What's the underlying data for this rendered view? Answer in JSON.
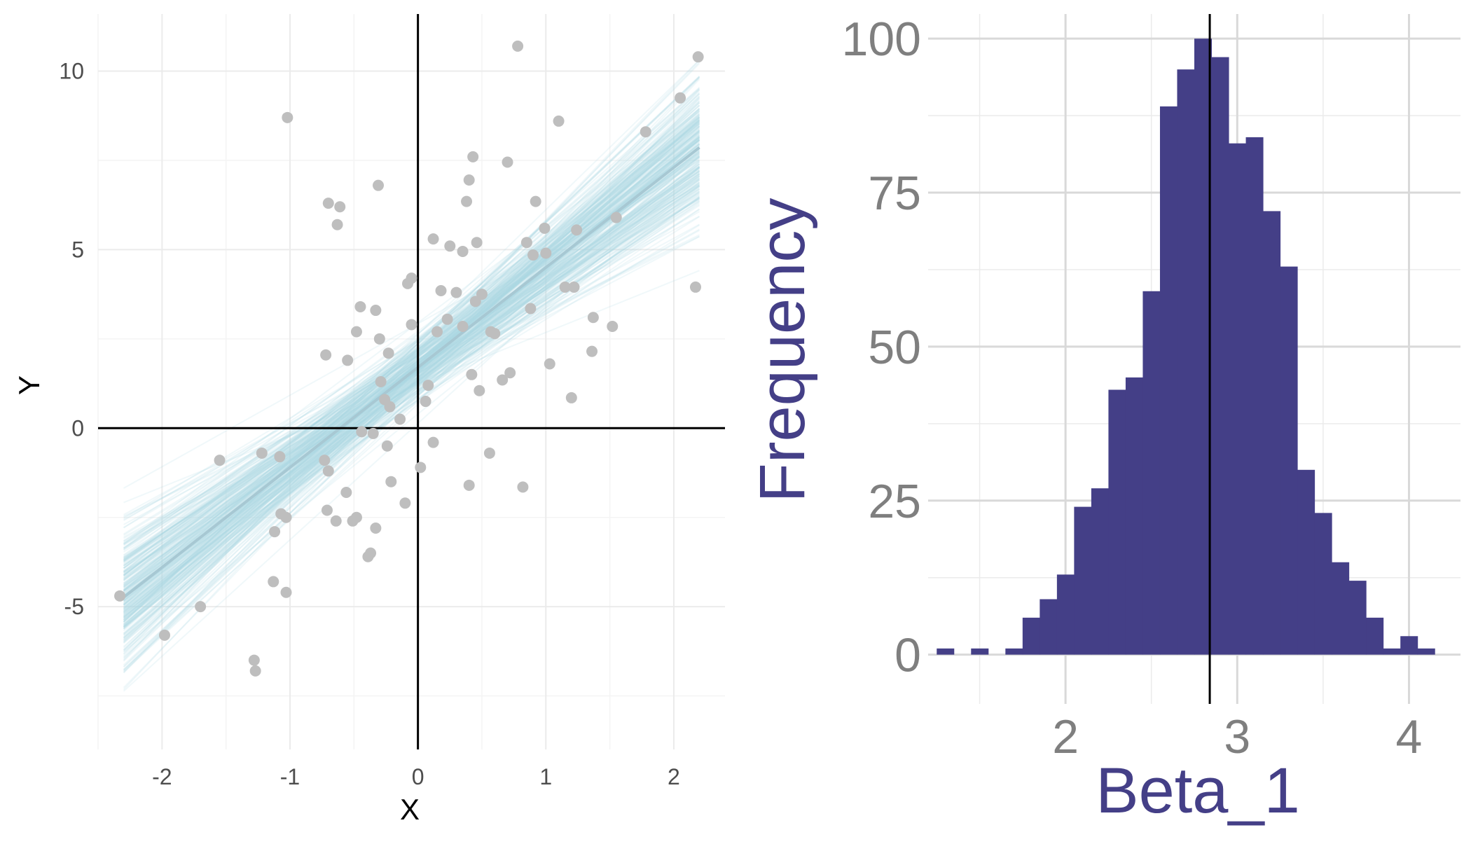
{
  "chart_data": [
    {
      "type": "scatter",
      "title": "",
      "xlabel": "X",
      "ylabel": "Y",
      "xlim": [
        -2.5,
        2.4
      ],
      "ylim": [
        -9,
        11.6
      ],
      "x_ticks": [
        -2,
        -1,
        0,
        1,
        2
      ],
      "x_tick_labels": [
        "-2",
        "-1",
        "0",
        "1",
        "2"
      ],
      "y_ticks": [
        -5,
        0,
        5,
        10
      ],
      "y_tick_labels": [
        "-5",
        "0",
        "5",
        "10"
      ],
      "grid": true,
      "reference_lines": {
        "x": 0,
        "y": 0
      },
      "colors": {
        "points": "#bebebe",
        "fit_bundle": "#add8e6",
        "mean_line": "#a7c8d3",
        "reference": "#000000",
        "grid": "#ebebeb",
        "tick_text": "#4d4d4d"
      },
      "fit": {
        "x_range": [
          -2.3,
          2.2
        ],
        "intercept_mean": 1.7,
        "slope_mean": 2.8,
        "intercept_sd": 0.45,
        "slope_sd": 0.4,
        "bundle_count": 300
      },
      "points": [
        [
          -2.33,
          -4.7
        ],
        [
          -1.98,
          -5.8
        ],
        [
          -1.7,
          -5.0
        ],
        [
          -1.55,
          -0.9
        ],
        [
          -1.28,
          -6.5
        ],
        [
          -1.27,
          -6.8
        ],
        [
          -1.22,
          -0.7
        ],
        [
          -1.13,
          -4.3
        ],
        [
          -1.12,
          -2.9
        ],
        [
          -1.08,
          -0.8
        ],
        [
          -1.07,
          -2.4
        ],
        [
          -1.03,
          -2.5
        ],
        [
          -1.03,
          -4.6
        ],
        [
          -1.02,
          8.7
        ],
        [
          -0.73,
          -0.9
        ],
        [
          -0.72,
          2.05
        ],
        [
          -0.71,
          -2.3
        ],
        [
          -0.7,
          6.3
        ],
        [
          -0.7,
          -1.2
        ],
        [
          -0.64,
          -2.6
        ],
        [
          -0.63,
          5.7
        ],
        [
          -0.61,
          6.2
        ],
        [
          -0.56,
          -1.8
        ],
        [
          -0.55,
          1.9
        ],
        [
          -0.51,
          -2.6
        ],
        [
          -0.48,
          2.7
        ],
        [
          -0.48,
          -2.5
        ],
        [
          -0.45,
          3.4
        ],
        [
          -0.44,
          -0.1
        ],
        [
          -0.39,
          -3.6
        ],
        [
          -0.37,
          -3.5
        ],
        [
          -0.35,
          -0.15
        ],
        [
          -0.33,
          -2.8
        ],
        [
          -0.33,
          3.3
        ],
        [
          -0.31,
          6.8
        ],
        [
          -0.3,
          2.5
        ],
        [
          -0.29,
          1.3
        ],
        [
          -0.26,
          0.8
        ],
        [
          -0.24,
          -0.5
        ],
        [
          -0.23,
          2.1
        ],
        [
          -0.22,
          0.6
        ],
        [
          -0.21,
          -1.5
        ],
        [
          -0.14,
          0.25
        ],
        [
          -0.1,
          -2.1
        ],
        [
          -0.08,
          4.05
        ],
        [
          -0.05,
          4.2
        ],
        [
          -0.05,
          2.9
        ],
        [
          0.02,
          -1.1
        ],
        [
          0.06,
          0.75
        ],
        [
          0.08,
          1.2
        ],
        [
          0.12,
          5.3
        ],
        [
          0.12,
          -0.4
        ],
        [
          0.15,
          2.7
        ],
        [
          0.18,
          3.85
        ],
        [
          0.23,
          3.05
        ],
        [
          0.25,
          5.1
        ],
        [
          0.3,
          3.8
        ],
        [
          0.35,
          2.85
        ],
        [
          0.35,
          4.95
        ],
        [
          0.38,
          6.35
        ],
        [
          0.4,
          6.95
        ],
        [
          0.4,
          -1.6
        ],
        [
          0.42,
          1.5
        ],
        [
          0.43,
          7.6
        ],
        [
          0.45,
          3.55
        ],
        [
          0.46,
          5.2
        ],
        [
          0.48,
          1.05
        ],
        [
          0.5,
          3.75
        ],
        [
          0.56,
          -0.7
        ],
        [
          0.57,
          2.7
        ],
        [
          0.6,
          2.65
        ],
        [
          0.66,
          1.35
        ],
        [
          0.7,
          7.45
        ],
        [
          0.72,
          1.55
        ],
        [
          0.78,
          10.7
        ],
        [
          0.82,
          -1.65
        ],
        [
          0.85,
          5.2
        ],
        [
          0.88,
          3.35
        ],
        [
          0.9,
          4.85
        ],
        [
          0.92,
          6.35
        ],
        [
          0.99,
          5.6
        ],
        [
          1.0,
          4.9
        ],
        [
          1.03,
          1.8
        ],
        [
          1.1,
          8.6
        ],
        [
          1.15,
          3.95
        ],
        [
          1.2,
          0.85
        ],
        [
          1.22,
          3.95
        ],
        [
          1.24,
          5.55
        ],
        [
          1.36,
          2.15
        ],
        [
          1.37,
          3.1
        ],
        [
          1.52,
          2.85
        ],
        [
          1.55,
          5.9
        ],
        [
          1.78,
          8.3
        ],
        [
          2.05,
          9.25
        ],
        [
          2.17,
          3.95
        ],
        [
          2.19,
          10.4
        ]
      ]
    },
    {
      "type": "bar",
      "subtype": "histogram",
      "title": "",
      "xlabel": "Beta_1",
      "ylabel": "Frequency",
      "xlim": [
        1.2,
        4.3
      ],
      "ylim": [
        -8,
        104
      ],
      "x_ticks": [
        2,
        3,
        4
      ],
      "x_tick_labels": [
        "2",
        "3",
        "4"
      ],
      "y_ticks": [
        0,
        25,
        50,
        75,
        100
      ],
      "y_tick_labels": [
        "0",
        "25",
        "50",
        "75",
        "100"
      ],
      "grid": true,
      "vertical_line": 2.84,
      "colors": {
        "bars": "#443f87",
        "label": "#443f87",
        "tick_text": "#7f7f7f",
        "grid": "#d9d9d9",
        "vline": "#000000"
      },
      "bin_start": 1.25,
      "bin_width": 0.1,
      "counts": [
        1,
        0,
        1,
        0,
        1,
        6,
        9,
        13,
        24,
        27,
        43,
        45,
        59,
        89,
        95,
        100,
        97,
        83,
        84,
        72,
        63,
        30,
        23,
        15,
        12,
        6,
        1,
        3,
        1
      ]
    }
  ]
}
